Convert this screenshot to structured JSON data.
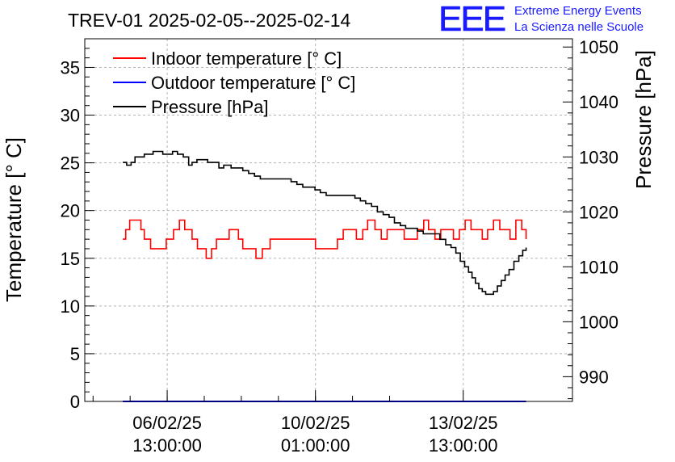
{
  "chart_data": {
    "type": "line",
    "title": "TREV-01 2025-02-05--2025-02-14",
    "ylabel": "Temperature [° C]",
    "ylabel_right": "Pressure [hPa]",
    "xlabel": "",
    "ylim": [
      0,
      38
    ],
    "ylim_right": [
      985.5,
      1051.5
    ],
    "xlim": [
      0,
      100
    ],
    "grid": true,
    "legend_position": "top-left",
    "y_ticks": [
      0,
      5,
      10,
      15,
      20,
      25,
      30,
      35
    ],
    "y_ticks_right": [
      990,
      1000,
      1010,
      1020,
      1030,
      1040,
      1050
    ],
    "x_ticks": [
      {
        "x": 16.9,
        "line1": "06/02/25",
        "line2": "13:00:00"
      },
      {
        "x": 47.3,
        "line1": "10/02/25",
        "line2": "01:00:00"
      },
      {
        "x": 77.6,
        "line1": "13/02/25",
        "line2": "13:00:00"
      }
    ],
    "series": [
      {
        "name": "Indoor temperature [° C]",
        "color": "#ff0000",
        "axis": "left",
        "x": [
          7.8,
          8.4,
          9.2,
          10.5,
          11.5,
          12.2,
          13.5,
          15.6,
          16.7,
          17.6,
          18.2,
          19.4,
          20.5,
          22.0,
          23.1,
          23.8,
          24.9,
          26.0,
          27.0,
          28.5,
          29.6,
          30.6,
          31.5,
          32.4,
          33.6,
          35.1,
          36.4,
          38.0,
          42.0,
          47.3,
          48.2,
          49.5,
          50.5,
          51.8,
          53.0,
          54.5,
          55.7,
          57.0,
          58.0,
          59.5,
          60.8,
          62.0,
          63.1,
          64.2,
          65.5,
          67.0,
          68.2,
          69.5,
          70.5,
          71.8,
          73.0,
          74.3,
          75.6,
          76.8,
          78.0,
          79.2,
          80.5,
          81.5,
          82.6,
          83.8,
          85.1,
          86.0,
          87.2,
          88.4,
          89.6,
          90.5
        ],
        "y": [
          17,
          18,
          19,
          19,
          18,
          17,
          16,
          16,
          17,
          17,
          18,
          19,
          18,
          17,
          16,
          16,
          15,
          16,
          17,
          17,
          18,
          18,
          17,
          16,
          16,
          15,
          16,
          17,
          17,
          16,
          16,
          16,
          16,
          17,
          18,
          18,
          17,
          18,
          19,
          18,
          17,
          18,
          18,
          18,
          17,
          17,
          18,
          19,
          18,
          17,
          18,
          18,
          17,
          18,
          19,
          18,
          18,
          17,
          18,
          19,
          18,
          18,
          17,
          19,
          18,
          17
        ]
      },
      {
        "name": "Outdoor temperature [° C]",
        "color": "#0000ff",
        "axis": "left",
        "x": [
          7.8,
          90.5
        ],
        "y": [
          0,
          0
        ]
      },
      {
        "name": "Pressure [hPa]",
        "color": "#000000",
        "axis": "right",
        "x": [
          7.8,
          8.6,
          9.5,
          10.3,
          11.0,
          12.2,
          13.0,
          14.0,
          15.0,
          16.0,
          17.0,
          18.0,
          19.0,
          20.2,
          21.3,
          22.0,
          23.0,
          24.1,
          25.2,
          26.3,
          27.5,
          28.5,
          30.0,
          31.2,
          32.4,
          33.6,
          34.8,
          36.0,
          37.4,
          38.6,
          39.8,
          41.0,
          42.3,
          43.5,
          44.7,
          46.0,
          47.2,
          48.3,
          49.5,
          50.6,
          51.8,
          53.0,
          54.2,
          55.4,
          56.5,
          57.6,
          58.8,
          60.0,
          61.2,
          62.4,
          63.5,
          64.7,
          65.8,
          67.0,
          68.2,
          69.4,
          70.5,
          71.7,
          72.8,
          74.0,
          75.1,
          76.1,
          77.0,
          77.9,
          78.7,
          79.4,
          80.1,
          80.8,
          81.5,
          82.2,
          83.0,
          83.8,
          84.6,
          85.4,
          86.2,
          87.0,
          88.0,
          89.0,
          89.8,
          90.5
        ],
        "y": [
          1029.0,
          1028.5,
          1029.0,
          1030.0,
          1030.0,
          1030.5,
          1030.5,
          1031.0,
          1031.0,
          1030.5,
          1030.5,
          1031.0,
          1030.5,
          1030.0,
          1028.5,
          1029.0,
          1029.5,
          1029.5,
          1029.0,
          1029.0,
          1028.0,
          1028.5,
          1028.0,
          1028.0,
          1027.5,
          1027.0,
          1026.5,
          1026.0,
          1026.0,
          1026.0,
          1026.0,
          1026.0,
          1025.5,
          1025.0,
          1024.5,
          1024.5,
          1024.0,
          1023.5,
          1023.0,
          1023.0,
          1023.0,
          1023.0,
          1023.0,
          1022.5,
          1022.0,
          1021.5,
          1021.0,
          1020.0,
          1019.5,
          1019.0,
          1018.0,
          1017.5,
          1017.0,
          1017.0,
          1016.5,
          1016.0,
          1016.0,
          1016.0,
          1015.0,
          1014.0,
          1013.5,
          1012.5,
          1011.0,
          1010.0,
          1009.0,
          1008.0,
          1007.0,
          1006.0,
          1005.5,
          1005.0,
          1005.0,
          1005.5,
          1006.5,
          1007.5,
          1008.5,
          1009.5,
          1011.0,
          1012.0,
          1013.0,
          1013.5
        ]
      }
    ]
  },
  "logo": {
    "mark": "EEE",
    "line1": "Extreme Energy Events",
    "line2": "La Scienza nelle Scuole"
  }
}
